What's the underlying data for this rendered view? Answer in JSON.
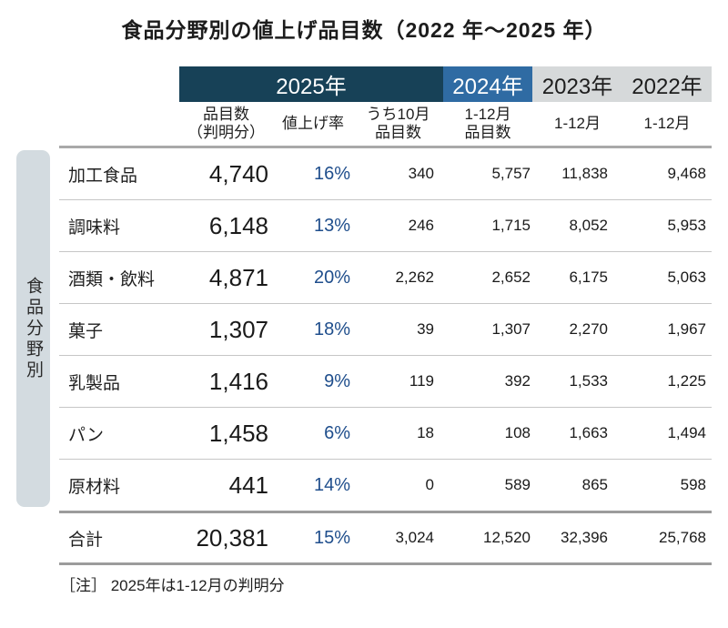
{
  "title": "食品分野別の値上げ品目数（2022 年～2025 年）",
  "side_label": "食品分野別",
  "note": "［注］ 2025年は1-12月の判明分",
  "header": {
    "years": [
      "2025年",
      "2024年",
      "2023年",
      "2022年"
    ],
    "sub": [
      {
        "line1": "品目数",
        "line2": "（判明分）"
      },
      {
        "line1": "値上げ率",
        "line2": ""
      },
      {
        "line1": "うち10月",
        "line2": "品目数"
      },
      {
        "line1": "1-12月",
        "line2": "品目数"
      },
      {
        "line1": "1-12月",
        "line2": ""
      },
      {
        "line1": "1-12月",
        "line2": ""
      }
    ]
  },
  "rows": [
    {
      "category": "加工食品",
      "items": "4,740",
      "rate": "16%",
      "october": "340",
      "y2024": "5,757",
      "y2023": "11,838",
      "y2022": "9,468"
    },
    {
      "category": "調味料",
      "items": "6,148",
      "rate": "13%",
      "october": "246",
      "y2024": "1,715",
      "y2023": "8,052",
      "y2022": "5,953"
    },
    {
      "category": "酒類・飲料",
      "items": "4,871",
      "rate": "20%",
      "october": "2,262",
      "y2024": "2,652",
      "y2023": "6,175",
      "y2022": "5,063"
    },
    {
      "category": "菓子",
      "items": "1,307",
      "rate": "18%",
      "october": "39",
      "y2024": "1,307",
      "y2023": "2,270",
      "y2022": "1,967"
    },
    {
      "category": "乳製品",
      "items": "1,416",
      "rate": "9%",
      "october": "119",
      "y2024": "392",
      "y2023": "1,533",
      "y2022": "1,225"
    },
    {
      "category": "パン",
      "items": "1,458",
      "rate": "6%",
      "october": "18",
      "y2024": "108",
      "y2023": "1,663",
      "y2022": "1,494"
    },
    {
      "category": "原材料",
      "items": "441",
      "rate": "14%",
      "october": "0",
      "y2024": "589",
      "y2023": "865",
      "y2022": "598"
    }
  ],
  "total": {
    "category": "合計",
    "items": "20,381",
    "rate": "15%",
    "october": "3,024",
    "y2024": "12,520",
    "y2023": "32,396",
    "y2022": "25,768"
  },
  "colors": {
    "header_2025_bg": "#174157",
    "header_2024_bg": "#2f6ba3",
    "header_past_bg": "#d6d9da",
    "sidebar_bg": "#d3dbe0",
    "rate_text": "#1f4e8c",
    "thin_rule": "#c6c6c6",
    "thick_rule": "#9c9c9c"
  },
  "chart_data": {
    "type": "table",
    "title": "食品分野別の値上げ品目数（2022 年～2025 年）",
    "row_axis_label": "食品分野別",
    "column_groups": [
      "2025年",
      "2025年",
      "2025年",
      "2024年",
      "2023年",
      "2022年"
    ],
    "columns": [
      "品目数（判明分）",
      "値上げ率",
      "うち10月品目数",
      "1-12月品目数",
      "1-12月",
      "1-12月"
    ],
    "categories": [
      "加工食品",
      "調味料",
      "酒類・飲料",
      "菓子",
      "乳製品",
      "パン",
      "原材料",
      "合計"
    ],
    "values": [
      [
        4740,
        "16%",
        340,
        5757,
        11838,
        9468
      ],
      [
        6148,
        "13%",
        246,
        1715,
        8052,
        5953
      ],
      [
        4871,
        "20%",
        2262,
        2652,
        6175,
        5063
      ],
      [
        1307,
        "18%",
        39,
        1307,
        2270,
        1967
      ],
      [
        1416,
        "9%",
        119,
        392,
        1533,
        1225
      ],
      [
        1458,
        "6%",
        18,
        108,
        1663,
        1494
      ],
      [
        441,
        "14%",
        0,
        589,
        865,
        598
      ],
      [
        20381,
        "15%",
        3024,
        12520,
        32396,
        25768
      ]
    ],
    "note": "2025年は1-12月の判明分"
  }
}
